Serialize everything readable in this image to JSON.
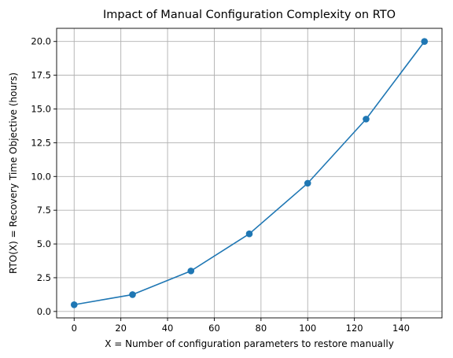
{
  "chart_data": {
    "type": "line",
    "title": "Impact of Manual Configuration Complexity on RTO",
    "xlabel": "X = Number of configuration parameters to restore manually",
    "ylabel": "RTO(X) = Recovery Time Objective (hours)",
    "x": [
      0,
      25,
      50,
      75,
      100,
      125,
      150
    ],
    "series": [
      {
        "values": [
          0.5,
          1.25,
          3.0,
          5.75,
          9.5,
          14.25,
          20.0
        ],
        "color": "#1f77b4",
        "marker": "circle"
      }
    ],
    "xlim": [
      -7.5,
      157.5
    ],
    "ylim": [
      -0.475,
      20.975
    ],
    "xticks": [
      0,
      20,
      40,
      60,
      80,
      100,
      120,
      140
    ],
    "xtick_labels": [
      "0",
      "20",
      "40",
      "60",
      "80",
      "100",
      "120",
      "140"
    ],
    "yticks": [
      0.0,
      2.5,
      5.0,
      7.5,
      10.0,
      12.5,
      15.0,
      17.5,
      20.0
    ],
    "ytick_labels": [
      "0.0",
      "2.5",
      "5.0",
      "7.5",
      "10.0",
      "12.5",
      "15.0",
      "17.5",
      "20.0"
    ],
    "grid": true,
    "legend": "none"
  }
}
